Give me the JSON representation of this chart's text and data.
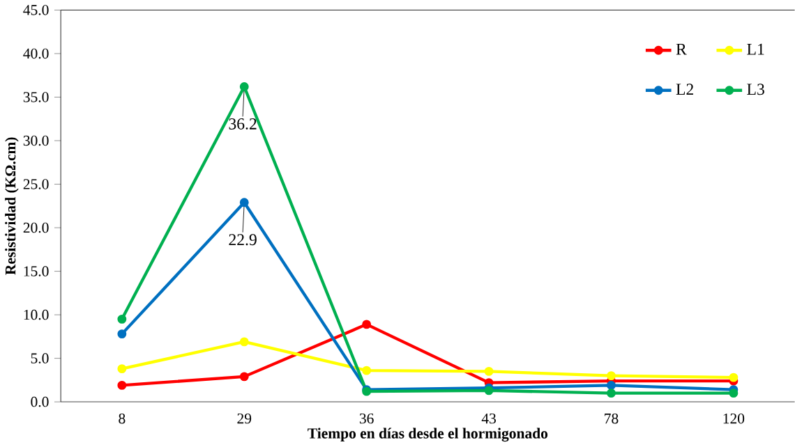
{
  "chart_data": {
    "type": "line",
    "xlabel": "Tiempo  en días desde el hormigonado",
    "ylabel": "Resistividad (KΩ.cm)",
    "categories": [
      "8",
      "29",
      "36",
      "43",
      "78",
      "120"
    ],
    "series": [
      {
        "name": "R",
        "color": "#ff0000",
        "values": [
          1.9,
          2.9,
          8.9,
          2.2,
          2.4,
          2.4
        ]
      },
      {
        "name": "L1",
        "color": "#ffff00",
        "values": [
          3.8,
          6.9,
          3.6,
          3.5,
          3.0,
          2.8
        ]
      },
      {
        "name": "L2",
        "color": "#0070c0",
        "values": [
          7.8,
          22.9,
          1.4,
          1.6,
          1.9,
          1.4
        ]
      },
      {
        "name": "L3",
        "color": "#00b050",
        "values": [
          9.5,
          36.2,
          1.2,
          1.3,
          1.0,
          1.0
        ]
      }
    ],
    "annotations": [
      {
        "text": "36.2",
        "x": "29",
        "y": 36.2
      },
      {
        "text": "22.9",
        "x": "29",
        "y": 22.9
      }
    ],
    "ylim": [
      0,
      45
    ],
    "yticks": [
      {
        "value": 0,
        "label": "0.0"
      },
      {
        "value": 5,
        "label": "5.0"
      },
      {
        "value": 10,
        "label": "10.0"
      },
      {
        "value": 15,
        "label": "15.0"
      },
      {
        "value": 20,
        "label": "20.0"
      },
      {
        "value": 25,
        "label": "25.0"
      },
      {
        "value": 30,
        "label": "30.0"
      },
      {
        "value": 35,
        "label": "35.0"
      },
      {
        "value": 40,
        "label": "40.0"
      },
      {
        "value": 45,
        "label": "45.0"
      }
    ],
    "grid": false,
    "legend": "top right",
    "marker": "circle",
    "line_style": "solid"
  }
}
